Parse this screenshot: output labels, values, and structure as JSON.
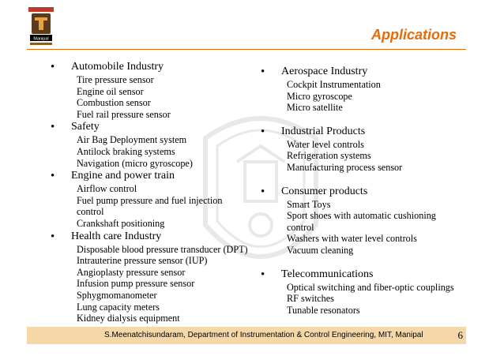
{
  "header": {
    "title": "Applications",
    "logo_text": "Manipal"
  },
  "left": [
    {
      "heading": "Automobile Industry",
      "items": [
        "Tire pressure sensor",
        "Engine oil sensor",
        "Combustion sensor",
        "Fuel rail pressure sensor"
      ]
    },
    {
      "heading": "Safety",
      "items": [
        "Air Bag Deployment system",
        "Antilock braking systems",
        "Navigation (micro gyroscope)"
      ]
    },
    {
      "heading": "Engine and power train",
      "items": [
        "Airflow control",
        "Fuel pump pressure and fuel injection control",
        "Crankshaft positioning"
      ]
    },
    {
      "heading": "Health care Industry",
      "items": [
        "Disposable blood pressure transducer (DPT)",
        "Intrauterine pressure sensor (IUP)",
        "Angioplasty pressure sensor",
        "Infusion pump pressure sensor",
        "Sphygmomanometer",
        "Lung capacity meters",
        "Kidney dialysis equipment"
      ]
    }
  ],
  "right": [
    {
      "heading": "Aerospace Industry",
      "items": [
        "Cockpit Instrumentation",
        "Micro gyroscope",
        "Micro satellite"
      ]
    },
    {
      "heading": "Industrial Products",
      "items": [
        "Water level controls",
        "Refrigeration systems",
        "Manufacturing process sensor"
      ]
    },
    {
      "heading": "Consumer products",
      "items": [
        "Smart Toys",
        "Sport shoes with automatic cushioning control",
        "Washers with water level controls",
        "Vacuum cleaning"
      ]
    },
    {
      "heading": "Telecommunications",
      "items": [
        "Optical switching and fiber-optic couplings",
        "RF switches",
        "Tunable resonators"
      ]
    }
  ],
  "footer": {
    "text": "S.Meenatchisundaram, Department of Instrumentation & Control Engineering, MIT, Manipal",
    "page": "6"
  },
  "colors": {
    "title": "#e46c0a",
    "footer_bg": "#f6d7a8"
  }
}
